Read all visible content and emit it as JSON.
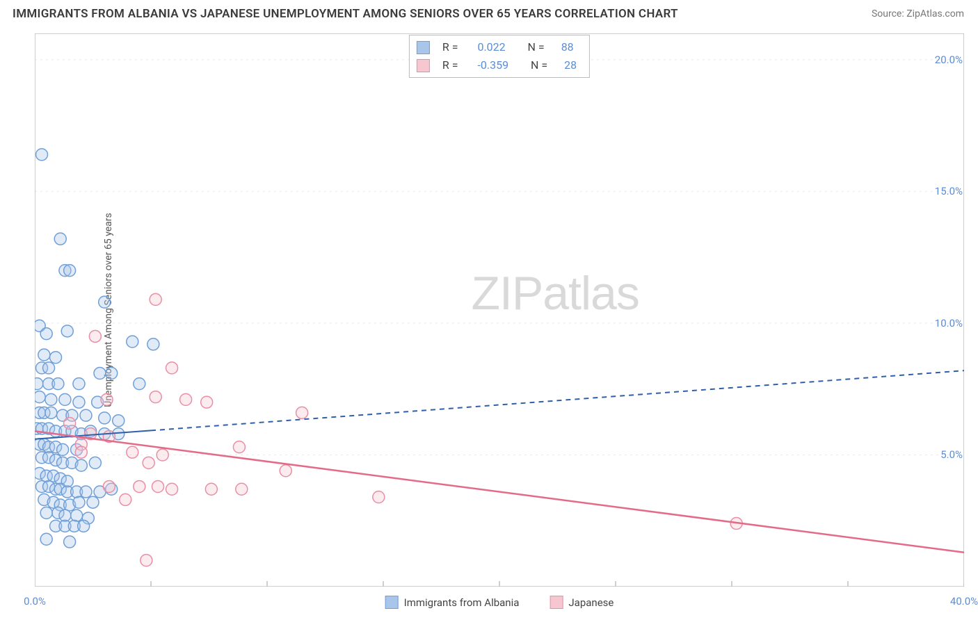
{
  "header": {
    "title": "IMMIGRANTS FROM ALBANIA VS JAPANESE UNEMPLOYMENT AMONG SENIORS OVER 65 YEARS CORRELATION CHART",
    "source": "Source: ZipAtlas.com"
  },
  "chart": {
    "type": "scatter",
    "background_color": "#ffffff",
    "grid_color": "#e9e9e9",
    "axis_color": "#bfbfbf",
    "ylabel": "Unemployment Among Seniors over 65 years",
    "ylabel_fontsize": 14,
    "xlim": [
      0,
      40
    ],
    "ylim": [
      0,
      21
    ],
    "xtick_step": 5,
    "ytick_step": 5,
    "ytick_labels": [
      "5.0%",
      "10.0%",
      "15.0%",
      "20.0%"
    ],
    "ytick_values": [
      5,
      10,
      15,
      20
    ],
    "xtick_labels": [
      "0.0%",
      "40.0%"
    ],
    "xtick_label_positions": [
      0,
      40
    ],
    "xtick_values": [
      5,
      10,
      15,
      20,
      25,
      30,
      35,
      40
    ],
    "marker_radius": 8.5,
    "marker_border_width": 1.5,
    "marker_fill_opacity": 0.35,
    "series": [
      {
        "name": "Immigrants from Albania",
        "color_fill": "#a9c6ea",
        "color_stroke": "#6f9fd8",
        "R": "0.022",
        "N": "88",
        "trend": {
          "y_at_xmin": 5.6,
          "y_at_xmax": 8.2,
          "dash_from_x": 5,
          "stroke": "#2f5fa8",
          "width": 2
        },
        "points": [
          [
            0.3,
            16.4
          ],
          [
            1.1,
            13.2
          ],
          [
            1.3,
            12.0
          ],
          [
            1.5,
            12.0
          ],
          [
            3.0,
            10.8
          ],
          [
            0.2,
            9.9
          ],
          [
            0.5,
            9.6
          ],
          [
            1.4,
            9.7
          ],
          [
            4.2,
            9.3
          ],
          [
            5.1,
            9.2
          ],
          [
            0.4,
            8.8
          ],
          [
            0.9,
            8.7
          ],
          [
            0.3,
            8.3
          ],
          [
            0.6,
            8.3
          ],
          [
            2.8,
            8.1
          ],
          [
            3.3,
            8.1
          ],
          [
            0.1,
            7.7
          ],
          [
            0.6,
            7.7
          ],
          [
            1.0,
            7.7
          ],
          [
            1.9,
            7.7
          ],
          [
            4.5,
            7.7
          ],
          [
            0.2,
            7.2
          ],
          [
            0.7,
            7.1
          ],
          [
            1.3,
            7.1
          ],
          [
            1.9,
            7.0
          ],
          [
            2.7,
            7.0
          ],
          [
            0.2,
            6.6
          ],
          [
            0.4,
            6.6
          ],
          [
            0.7,
            6.6
          ],
          [
            1.2,
            6.5
          ],
          [
            1.6,
            6.5
          ],
          [
            2.2,
            6.5
          ],
          [
            3.0,
            6.4
          ],
          [
            3.6,
            6.3
          ],
          [
            0.1,
            6.0
          ],
          [
            0.3,
            6.0
          ],
          [
            0.6,
            6.0
          ],
          [
            0.9,
            5.9
          ],
          [
            1.3,
            5.9
          ],
          [
            1.6,
            5.9
          ],
          [
            2.0,
            5.8
          ],
          [
            2.4,
            5.9
          ],
          [
            3.0,
            5.8
          ],
          [
            3.6,
            5.8
          ],
          [
            0.2,
            5.4
          ],
          [
            0.4,
            5.4
          ],
          [
            0.6,
            5.3
          ],
          [
            0.9,
            5.3
          ],
          [
            1.2,
            5.2
          ],
          [
            1.8,
            5.2
          ],
          [
            0.3,
            4.9
          ],
          [
            0.6,
            4.9
          ],
          [
            0.9,
            4.8
          ],
          [
            1.2,
            4.7
          ],
          [
            1.6,
            4.7
          ],
          [
            2.0,
            4.6
          ],
          [
            2.6,
            4.7
          ],
          [
            0.2,
            4.3
          ],
          [
            0.5,
            4.2
          ],
          [
            0.8,
            4.2
          ],
          [
            1.1,
            4.1
          ],
          [
            1.4,
            4.0
          ],
          [
            0.3,
            3.8
          ],
          [
            0.6,
            3.8
          ],
          [
            0.9,
            3.7
          ],
          [
            1.1,
            3.7
          ],
          [
            1.4,
            3.6
          ],
          [
            1.8,
            3.6
          ],
          [
            2.2,
            3.6
          ],
          [
            2.8,
            3.6
          ],
          [
            3.3,
            3.7
          ],
          [
            0.4,
            3.3
          ],
          [
            0.8,
            3.2
          ],
          [
            1.1,
            3.1
          ],
          [
            1.5,
            3.1
          ],
          [
            1.9,
            3.2
          ],
          [
            2.5,
            3.2
          ],
          [
            0.5,
            2.8
          ],
          [
            1.0,
            2.8
          ],
          [
            1.3,
            2.7
          ],
          [
            1.8,
            2.7
          ],
          [
            2.3,
            2.6
          ],
          [
            0.9,
            2.3
          ],
          [
            1.3,
            2.3
          ],
          [
            1.7,
            2.3
          ],
          [
            2.1,
            2.3
          ],
          [
            0.5,
            1.8
          ],
          [
            1.5,
            1.7
          ]
        ]
      },
      {
        "name": "Japanese",
        "color_fill": "#f6c7d1",
        "color_stroke": "#e98fa4",
        "R": "-0.359",
        "N": "28",
        "trend": {
          "y_at_xmin": 5.9,
          "y_at_xmax": 1.3,
          "dash_from_x": 40,
          "stroke": "#e36b88",
          "width": 2.5
        },
        "points": [
          [
            5.2,
            10.9
          ],
          [
            2.6,
            9.5
          ],
          [
            5.9,
            8.3
          ],
          [
            3.1,
            7.1
          ],
          [
            5.2,
            7.2
          ],
          [
            6.5,
            7.1
          ],
          [
            7.4,
            7.0
          ],
          [
            11.5,
            6.6
          ],
          [
            1.5,
            6.2
          ],
          [
            2.4,
            5.8
          ],
          [
            3.2,
            5.7
          ],
          [
            2.0,
            5.4
          ],
          [
            2.0,
            5.1
          ],
          [
            4.2,
            5.1
          ],
          [
            5.5,
            5.0
          ],
          [
            8.8,
            5.3
          ],
          [
            4.9,
            4.7
          ],
          [
            10.8,
            4.4
          ],
          [
            3.2,
            3.8
          ],
          [
            4.5,
            3.8
          ],
          [
            5.3,
            3.8
          ],
          [
            5.9,
            3.7
          ],
          [
            7.6,
            3.7
          ],
          [
            8.9,
            3.7
          ],
          [
            14.8,
            3.4
          ],
          [
            3.9,
            3.3
          ],
          [
            30.2,
            2.4
          ],
          [
            4.8,
            1.0
          ]
        ]
      }
    ],
    "legend_bottom": [
      {
        "label": "Immigrants from Albania",
        "fill": "#a9c6ea",
        "stroke": "#6f9fd8"
      },
      {
        "label": "Japanese",
        "fill": "#f6c7d1",
        "stroke": "#e98fa4"
      }
    ],
    "watermark": {
      "zip": "ZIP",
      "atlas": "atlas"
    }
  }
}
